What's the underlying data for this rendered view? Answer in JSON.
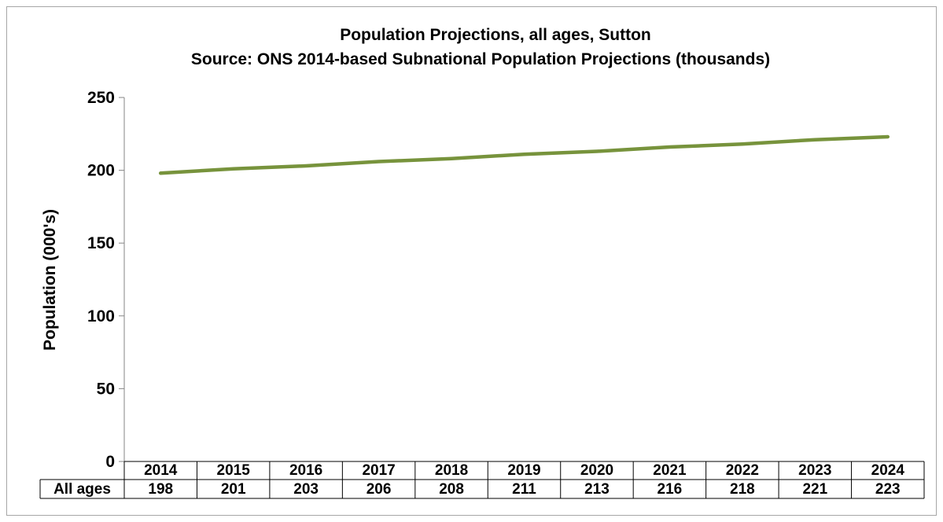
{
  "chart_data": {
    "type": "line",
    "title": "Population Projections, all ages, Sutton",
    "subtitle": "Source: ONS 2014-based Subnational  Population Projections (thousands)",
    "xlabel": "",
    "ylabel": "Population (000's)",
    "ylim": [
      0,
      250
    ],
    "yticks": [
      "0",
      "50",
      "100",
      "150",
      "200",
      "250"
    ],
    "grid": false,
    "legend": "none",
    "categories": [
      "2014",
      "2015",
      "2016",
      "2017",
      "2018",
      "2019",
      "2020",
      "2021",
      "2022",
      "2023",
      "2024"
    ],
    "series": [
      {
        "name": "All ages",
        "color": "#77933c",
        "values": [
          198,
          201,
          203,
          206,
          208,
          211,
          213,
          216,
          218,
          221,
          223
        ]
      }
    ],
    "data_table": {
      "row_label": "All ages",
      "values": [
        "198",
        "201",
        "203",
        "206",
        "208",
        "211",
        "213",
        "216",
        "218",
        "221",
        "223"
      ]
    }
  }
}
